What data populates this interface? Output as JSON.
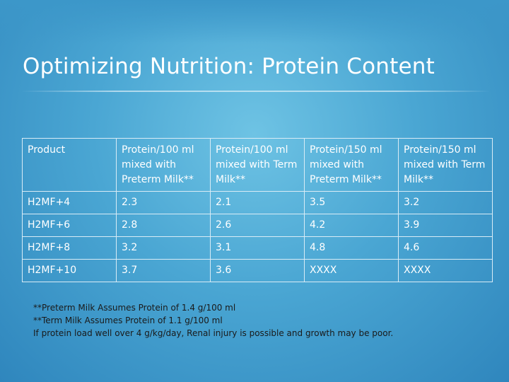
{
  "slide": {
    "title": "Optimizing Nutrition: Protein Content"
  },
  "table": {
    "headers": [
      "Product",
      "Protein/100 ml mixed with Preterm Milk**",
      "Protein/100 ml mixed with Term Milk**",
      "Protein/150 ml mixed with Preterm Milk**",
      "Protein/150 ml mixed with Term Milk**"
    ],
    "rows": [
      [
        "H2MF+4",
        "2.3",
        "2.1",
        "3.5",
        "3.2"
      ],
      [
        "H2MF+6",
        "2.8",
        "2.6",
        "4.2",
        "3.9"
      ],
      [
        "H2MF+8",
        "3.2",
        "3.1",
        "4.8",
        "4.6"
      ],
      [
        "H2MF+10",
        "3.7",
        "3.6",
        "XXXX",
        "XXXX"
      ]
    ]
  },
  "footnotes": [
    "**Preterm Milk Assumes Protein of 1.4 g/100 ml",
    "**Term Milk Assumes Protein of  1.1 g/100 ml",
    "If protein load well over 4 g/kg/day, Renal injury is possible and growth may be poor."
  ],
  "colors": {
    "background": "#4aa6d3",
    "text": "#ffffff",
    "footnote_text": "#1a1a1a",
    "table_border": "#d9ecf6"
  }
}
